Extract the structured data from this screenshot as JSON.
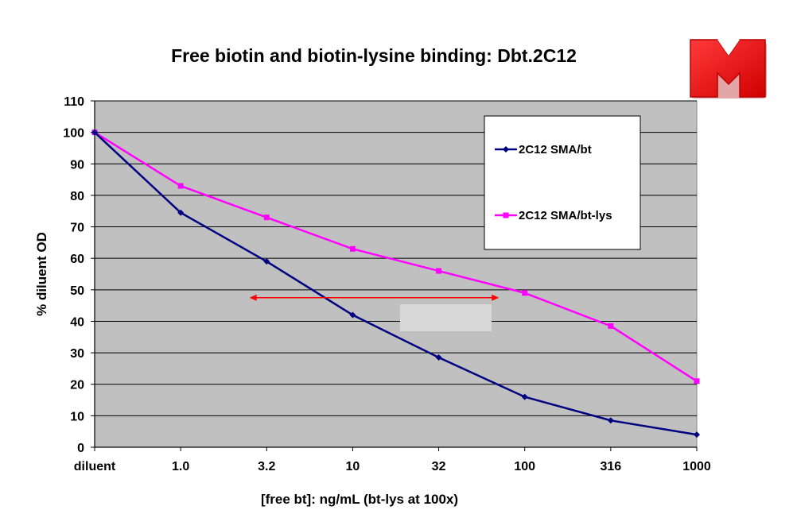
{
  "chart_data": {
    "type": "line",
    "title": "Free biotin and biotin-lysine binding: Dbt.2C12",
    "xlabel": "[free bt]: ng/mL (bt-lys at 100x)",
    "ylabel": "% diluent OD",
    "categories": [
      "diluent",
      "1.0",
      "3.2",
      "10",
      "32",
      "100",
      "316",
      "1000"
    ],
    "ylim": [
      0,
      110
    ],
    "yticks": [
      0,
      10,
      20,
      30,
      40,
      50,
      60,
      70,
      80,
      90,
      100,
      110
    ],
    "grid": true,
    "legend_position": "top-right",
    "plot_background": "#c0c0c0",
    "series": [
      {
        "name": "2C12 SMA/bt",
        "color": "#000080",
        "marker": "diamond",
        "values": [
          100,
          74.5,
          59,
          42,
          28.5,
          16,
          8.5,
          4
        ]
      },
      {
        "name": "2C12 SMA/bt-lys",
        "color": "#ff00ff",
        "marker": "square",
        "values": [
          100,
          83,
          73,
          63,
          56,
          49,
          38.5,
          21
        ]
      }
    ],
    "annotations": [
      {
        "type": "double-arrow",
        "color": "#ff0000",
        "y": 47.5,
        "x_from_category": 1.8,
        "x_to_category": 4.7
      }
    ]
  },
  "logo": {
    "name": "Y logo",
    "color": "#ff0000"
  }
}
